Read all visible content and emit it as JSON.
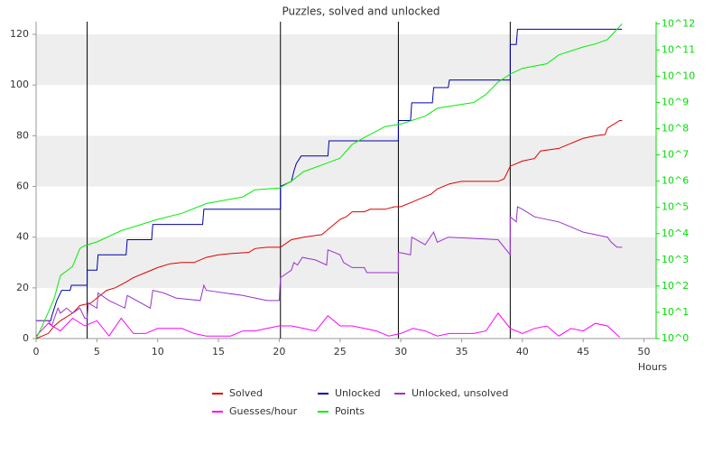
{
  "chart_data": {
    "type": "line",
    "title": "Puzzles, solved and unlocked",
    "xlabel": "Hours",
    "xlim": [
      0,
      51
    ],
    "xticks": [
      0,
      5,
      10,
      15,
      20,
      25,
      30,
      35,
      40,
      45,
      50
    ],
    "ylim": [
      0,
      125
    ],
    "yticks": [
      0,
      20,
      40,
      60,
      80,
      100,
      120
    ],
    "grid_bands": true,
    "y2lim": [
      1,
      1200000000000
    ],
    "y2scale": "log",
    "y2ticks": [
      {
        "value": 1,
        "label": "10^0"
      },
      {
        "value": 10,
        "label": "10^1"
      },
      {
        "value": 100,
        "label": "10^2"
      },
      {
        "value": 1000,
        "label": "10^3"
      },
      {
        "value": 10000,
        "label": "10^4"
      },
      {
        "value": 100000,
        "label": "10^5"
      },
      {
        "value": 1000000,
        "label": "10^6"
      },
      {
        "value": 10000000,
        "label": "10^7"
      },
      {
        "value": 100000000,
        "label": "10^8"
      },
      {
        "value": 1000000000,
        "label": "10^9"
      },
      {
        "value": 10000000000,
        "label": "10^10"
      },
      {
        "value": 100000000000,
        "label": "10^11"
      },
      {
        "value": 1000000000000,
        "label": "10^12"
      }
    ],
    "y2color": "#00dd00",
    "vlines": [
      4.2,
      20.1,
      29.8,
      39
    ],
    "series": [
      {
        "name": "Solved",
        "color": "#dd0000",
        "x": [
          0,
          1,
          1.5,
          2,
          3,
          3.6,
          4.5,
          5,
          5.8,
          6.5,
          7.3,
          8,
          9,
          10,
          11,
          12,
          13,
          14,
          15,
          16,
          17.5,
          18,
          19,
          20.1,
          21,
          22,
          23.5,
          24,
          25,
          25.5,
          26,
          27,
          27.5,
          28.7,
          29.5,
          30,
          31,
          31.5,
          32.5,
          33,
          34,
          35,
          38,
          38.5,
          39,
          40,
          41,
          41.5,
          43,
          44,
          45,
          46,
          46.8,
          47,
          48,
          48.2
        ],
        "values": [
          0,
          2,
          5,
          7,
          10,
          13,
          14,
          16,
          19,
          20,
          22,
          24,
          26,
          28,
          29.5,
          30,
          30,
          32,
          33,
          33.5,
          34,
          35.5,
          36,
          36,
          39,
          40,
          41,
          43,
          47,
          48,
          50,
          50,
          51,
          51,
          52,
          52,
          54,
          55,
          57,
          59,
          61,
          62,
          62,
          63,
          68,
          70,
          71,
          74,
          75,
          77,
          79,
          80,
          80.5,
          83,
          86,
          86
        ]
      },
      {
        "name": "Unlocked",
        "color": "#0000aa",
        "x": [
          0,
          1.2,
          1.3,
          1.5,
          1.7,
          1.9,
          2.1,
          2.8,
          2.9,
          4.2,
          4.2,
          5,
          5.1,
          7.4,
          7.5,
          9.5,
          9.6,
          13.7,
          13.8,
          20.1,
          20.1,
          21,
          21.2,
          21.4,
          21.8,
          24,
          24.1,
          29.8,
          29.8,
          30.8,
          30.9,
          32.6,
          32.7,
          33.9,
          34,
          39,
          39,
          39.5,
          39.6,
          48.2
        ],
        "values": [
          7,
          7,
          9,
          12,
          15,
          17,
          19,
          19,
          21,
          21,
          27,
          27,
          33,
          33,
          39,
          39,
          45,
          45,
          51,
          51,
          60,
          62,
          66,
          69,
          72,
          72,
          78,
          78,
          86,
          86,
          93,
          93,
          99,
          99,
          102,
          102,
          116,
          116,
          122,
          122
        ]
      },
      {
        "name": "Unlocked, unsolved",
        "color": "#9933cc",
        "x": [
          0,
          1,
          1.3,
          1.5,
          1.8,
          2,
          2.5,
          3,
          3.6,
          4,
          4.2,
          4.3,
          5,
          5.1,
          6,
          7.3,
          7.5,
          9.4,
          9.6,
          10.5,
          11.5,
          13.5,
          13.8,
          14,
          17,
          18,
          19,
          20,
          20.1,
          21,
          21.2,
          21.5,
          21.9,
          23,
          23.9,
          24,
          25,
          25.3,
          26,
          27,
          27.2,
          29.8,
          29.8,
          30.8,
          30.9,
          32,
          32.7,
          33,
          33.9,
          38,
          39,
          39,
          39.5,
          39.6,
          40,
          41,
          43,
          44,
          45,
          46,
          47,
          47.3,
          47.8,
          48.2
        ],
        "values": [
          7,
          7,
          5,
          8,
          12,
          10,
          12,
          10,
          12,
          8,
          8,
          14,
          12,
          18,
          15,
          12,
          17,
          12,
          19,
          18,
          16,
          15,
          21,
          19,
          17,
          16,
          15,
          15,
          24,
          27,
          30,
          29,
          32,
          31,
          29,
          35,
          33,
          30,
          28,
          28,
          26,
          26,
          34,
          33,
          40,
          37,
          42,
          38,
          40,
          39,
          33,
          48,
          46,
          52,
          51,
          48,
          46,
          44,
          42,
          41,
          40,
          38,
          36,
          36
        ]
      },
      {
        "name": "Guesses/hour",
        "color": "#ff00ff",
        "x": [
          0,
          1,
          2,
          3,
          4,
          5,
          6,
          7,
          8,
          9,
          10,
          11,
          12,
          13,
          14,
          15,
          16,
          17,
          18,
          19,
          20,
          21,
          22,
          23,
          24,
          25,
          26,
          27,
          28,
          29,
          30,
          31,
          32,
          33,
          34,
          35,
          36,
          37,
          38,
          39,
          40,
          41,
          42,
          43,
          44,
          45,
          46,
          47,
          48
        ],
        "values": [
          1,
          6,
          3,
          8,
          5,
          7,
          1,
          8,
          2,
          2,
          4,
          4,
          4,
          2,
          1,
          1,
          1,
          3,
          3,
          4,
          5,
          5,
          4,
          3,
          9,
          5,
          5,
          4,
          3,
          1,
          2,
          4,
          3,
          1,
          2,
          2,
          2,
          3,
          10,
          4,
          2,
          4,
          5,
          1,
          4,
          3,
          6,
          5,
          0.5
        ]
      },
      {
        "name": "Points",
        "color": "#00ee00",
        "axis": "y2",
        "x": [
          0,
          0.5,
          1,
          1.5,
          2,
          3,
          3.6,
          4,
          5,
          7,
          10,
          12,
          14,
          17,
          18,
          20,
          21,
          22,
          24,
          25,
          26,
          27,
          28.7,
          30,
          32,
          33,
          36,
          37,
          38,
          39,
          40,
          42,
          43,
          45,
          46,
          47,
          47.5,
          48.2
        ],
        "values": [
          1,
          3,
          10,
          35,
          250,
          560,
          2700,
          3500,
          4800,
          13000,
          35000,
          60000,
          140000,
          250000,
          470000,
          550000,
          1000000,
          2300000,
          5000000,
          7500000,
          25000000,
          46000000,
          120000000,
          150000000,
          300000000,
          600000000,
          1000000000,
          2000000000,
          6000000000,
          12000000000,
          20000000000,
          30000000000,
          65000000000,
          130000000000,
          170000000000,
          250000000000,
          450000000000,
          1000000000000
        ]
      }
    ]
  }
}
